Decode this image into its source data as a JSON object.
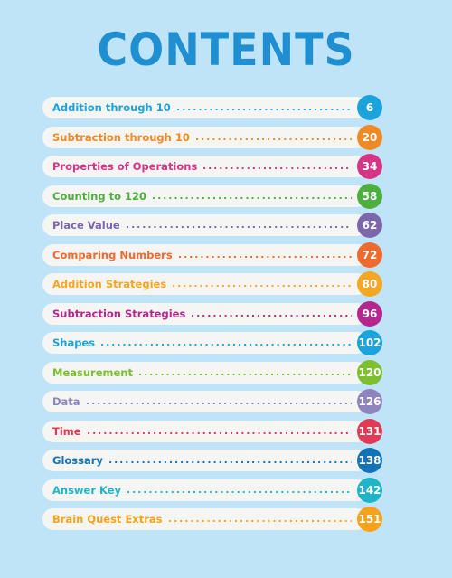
{
  "title": "CONTENTS",
  "entries": [
    {
      "label": "Addition through 10",
      "page": "6",
      "color": "#1aa3dc"
    },
    {
      "label": "Subtraction through 10",
      "page": "20",
      "color": "#f08a24"
    },
    {
      "label": "Properties of Operations",
      "page": "34",
      "color": "#d63586"
    },
    {
      "label": "Counting to 120",
      "page": "58",
      "color": "#4caf3f"
    },
    {
      "label": "Place Value",
      "page": "62",
      "color": "#7c67ad"
    },
    {
      "label": "Comparing Numbers",
      "page": "72",
      "color": "#f06a2d"
    },
    {
      "label": "Addition Strategies",
      "page": "80",
      "color": "#f5a623"
    },
    {
      "label": "Subtraction Strategies",
      "page": "96",
      "color": "#b5268f"
    },
    {
      "label": "Shapes",
      "page": "102",
      "color": "#1aa3dc"
    },
    {
      "label": "Measurement",
      "page": "120",
      "color": "#7cbf2f"
    },
    {
      "label": "Data",
      "page": "126",
      "color": "#8f84bd"
    },
    {
      "label": "Time",
      "page": "131",
      "color": "#e13a55"
    },
    {
      "label": "Glossary",
      "page": "138",
      "color": "#1472b8"
    },
    {
      "label": "Answer Key",
      "page": "142",
      "color": "#1fb5c6"
    },
    {
      "label": "Brain Quest Extras",
      "page": "151",
      "color": "#f7a21b"
    }
  ]
}
